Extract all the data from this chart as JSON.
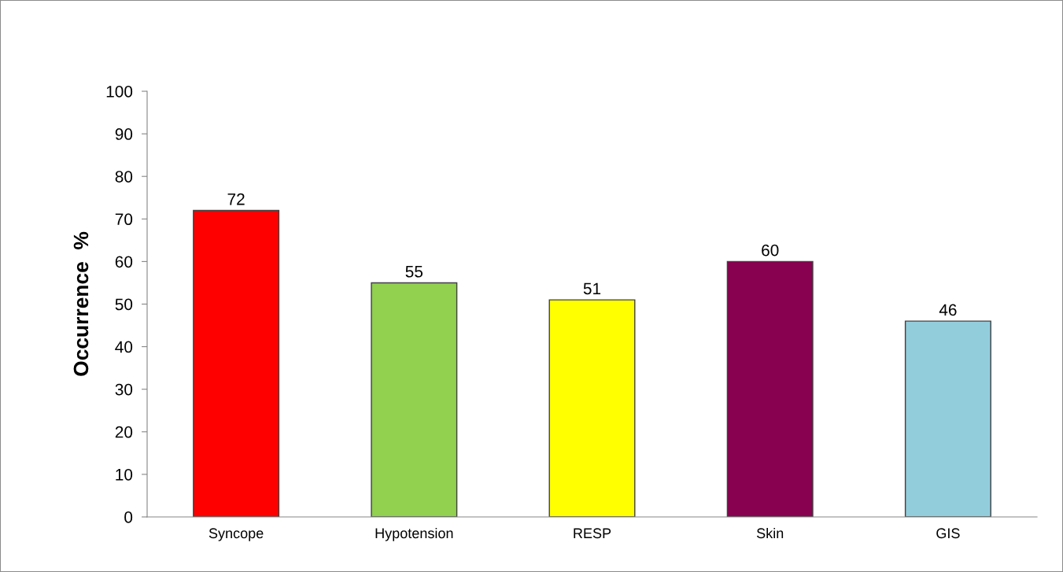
{
  "chart_data": {
    "type": "bar",
    "ylabel": "Occurrence  %",
    "categories": [
      "Syncope",
      "Hypotension",
      "RESP",
      "Skin",
      "GIS"
    ],
    "values": [
      72,
      55,
      51,
      60,
      46
    ],
    "colors": [
      "#ff0000",
      "#92d050",
      "#ffff00",
      "#880050",
      "#92cddc"
    ],
    "ylim": [
      0,
      100
    ],
    "yticks": [
      0,
      10,
      20,
      30,
      40,
      50,
      60,
      70,
      80,
      90,
      100
    ],
    "data_labels": true,
    "grid": false
  }
}
